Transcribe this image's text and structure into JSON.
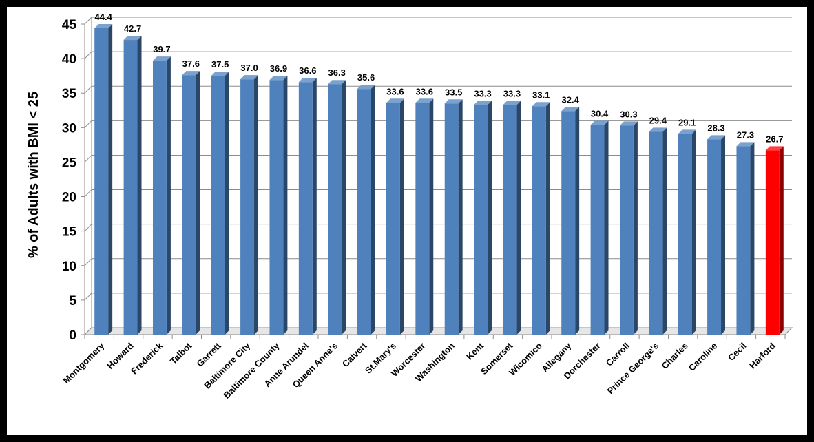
{
  "chart_data": {
    "type": "bar",
    "ylabel": "% of Adults with BMI < 25",
    "xlabel": "",
    "ylim": [
      0,
      45
    ],
    "yticks": [
      0,
      5,
      10,
      15,
      20,
      25,
      30,
      35,
      40,
      45
    ],
    "grid": true,
    "legend": "none",
    "categories": [
      "Montgomery",
      "Howard",
      "Frederick",
      "Talbot",
      "Garrett",
      "Baltimore City",
      "Baltimore County",
      "Anne Arundel",
      "Queen Anne's",
      "Calvert",
      "St.Mary's",
      "Worcester",
      "Washington",
      "Kent",
      "Somerset",
      "Wicomico",
      "Allegany",
      "Dorchester",
      "Carroll",
      "Prince George's",
      "Charles",
      "Caroline",
      "Cecil",
      "Harford"
    ],
    "values": [
      44.4,
      42.7,
      39.7,
      37.6,
      37.5,
      37.0,
      36.9,
      36.6,
      36.3,
      35.6,
      33.6,
      33.6,
      33.5,
      33.3,
      33.3,
      33.1,
      32.4,
      30.4,
      30.3,
      29.4,
      29.1,
      28.3,
      27.3,
      26.7
    ],
    "value_labels": [
      "44.4",
      "42.7",
      "39.7",
      "37.6",
      "37.5",
      "37.0",
      "36.9",
      "36.6",
      "36.3",
      "35.6",
      "33.6",
      "33.6",
      "33.5",
      "33.3",
      "33.3",
      "33.1",
      "32.4",
      "30.4",
      "30.3",
      "29.4",
      "29.1",
      "28.3",
      "27.3",
      "26.7"
    ],
    "bar_color": "#4F81BD",
    "highlight": {
      "category": "Harford",
      "color": "#FF0000"
    }
  }
}
